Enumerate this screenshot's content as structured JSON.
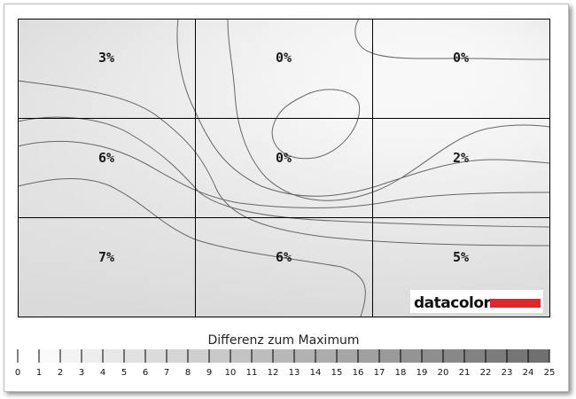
{
  "chart_data": {
    "type": "heatmap",
    "grid_rows": 3,
    "grid_cols": 3,
    "cells": [
      [
        "3%",
        "0%",
        "0%"
      ],
      [
        "6%",
        "0%",
        "2%"
      ],
      [
        "7%",
        "6%",
        "5%"
      ]
    ],
    "values": [
      [
        3,
        0,
        0
      ],
      [
        6,
        0,
        2
      ],
      [
        7,
        6,
        5
      ]
    ],
    "scale_title": "Differenz zum Maximum",
    "scale_ticks": [
      "0",
      "1",
      "2",
      "3",
      "4",
      "5",
      "6",
      "7",
      "8",
      "9",
      "10",
      "11",
      "12",
      "13",
      "14",
      "15",
      "16",
      "17",
      "18",
      "19",
      "20",
      "21",
      "22",
      "23",
      "24",
      "25"
    ],
    "scale_range": [
      0,
      25
    ],
    "contour_color": "#666666",
    "grid_color": "#000000"
  },
  "logo": {
    "text": "datacolor",
    "bar_color": "#e0262c"
  }
}
